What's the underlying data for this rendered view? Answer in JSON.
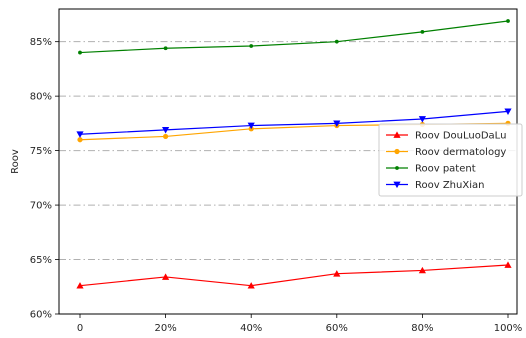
{
  "chart_data": {
    "type": "line",
    "title": "",
    "xlabel": "",
    "ylabel": "Roov",
    "x": [
      "0",
      "20%",
      "40%",
      "60%",
      "80%",
      "100%"
    ],
    "ylim": [
      60,
      88
    ],
    "yticks": [
      "60%",
      "65%",
      "70%",
      "75%",
      "80%",
      "85%"
    ],
    "grid": "horizontal dash-dot",
    "legend_placement": "center-right",
    "series": [
      {
        "name": "Roov DouLuoDaLu",
        "color": "#ff0000",
        "marker": "triangle-up",
        "values": [
          62.6,
          63.4,
          62.6,
          63.7,
          64.0,
          64.5
        ]
      },
      {
        "name": "Roov dermatology",
        "color": "#ffa500",
        "marker": "circle",
        "values": [
          76.0,
          76.3,
          77.0,
          77.3,
          77.4,
          77.5
        ]
      },
      {
        "name": "Roov patent",
        "color": "#008000",
        "marker": "dot",
        "values": [
          84.0,
          84.4,
          84.6,
          85.0,
          85.9,
          86.9
        ]
      },
      {
        "name": "Roov ZhuXian",
        "color": "#0000ff",
        "marker": "triangle-down",
        "values": [
          76.5,
          76.9,
          77.3,
          77.5,
          77.9,
          78.6
        ]
      }
    ]
  }
}
